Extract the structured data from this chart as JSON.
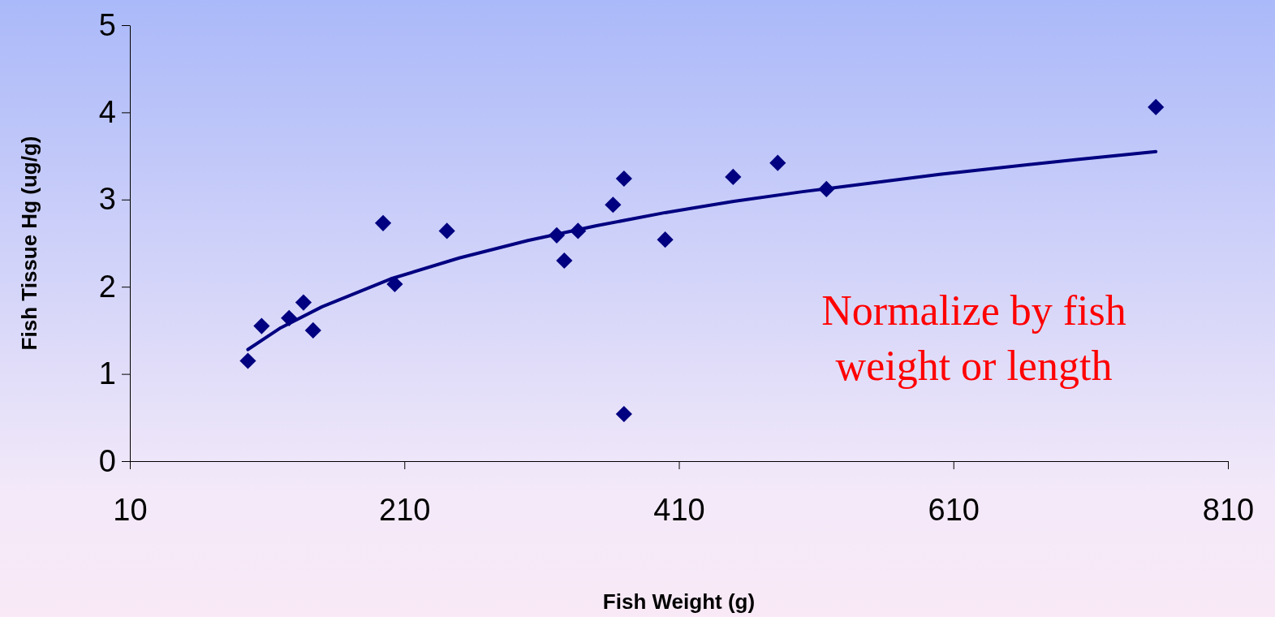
{
  "chart_data": {
    "type": "scatter",
    "xlabel": "Fish Weight (g)",
    "ylabel": "Fish Tissue Hg (ug/g)",
    "xlim": [
      10,
      810
    ],
    "xticks": [
      10,
      210,
      410,
      610,
      810
    ],
    "ylim": [
      0,
      5
    ],
    "yticks": [
      0,
      1,
      2,
      3,
      4,
      5
    ],
    "grid": false,
    "annotations": [
      "Normalize by fish weight or length"
    ],
    "series": [
      {
        "color": "#000080",
        "marker": "diamond",
        "x": [
          96,
          106,
          126,
          136.5,
          143.5,
          194.5,
          203,
          241,
          321,
          326.5,
          336.5,
          362,
          370,
          370,
          400,
          449.5,
          482,
          517.5,
          757.5
        ],
        "values": [
          1.15,
          1.55,
          1.64,
          1.82,
          1.5,
          2.73,
          2.03,
          2.64,
          2.59,
          2.3,
          2.64,
          2.94,
          3.24,
          0.54,
          2.54,
          3.26,
          3.42,
          3.12,
          4.06
        ]
      },
      {
        "type": "line",
        "color": "#000080",
        "marker": "none",
        "x": [
          96,
          120,
          150,
          200,
          250,
          300,
          350,
          400,
          450,
          500,
          600,
          700,
          757.5
        ],
        "values": [
          1.28,
          1.53,
          1.77,
          2.09,
          2.33,
          2.53,
          2.7,
          2.85,
          2.98,
          3.09,
          3.29,
          3.46,
          3.55
        ]
      }
    ]
  }
}
